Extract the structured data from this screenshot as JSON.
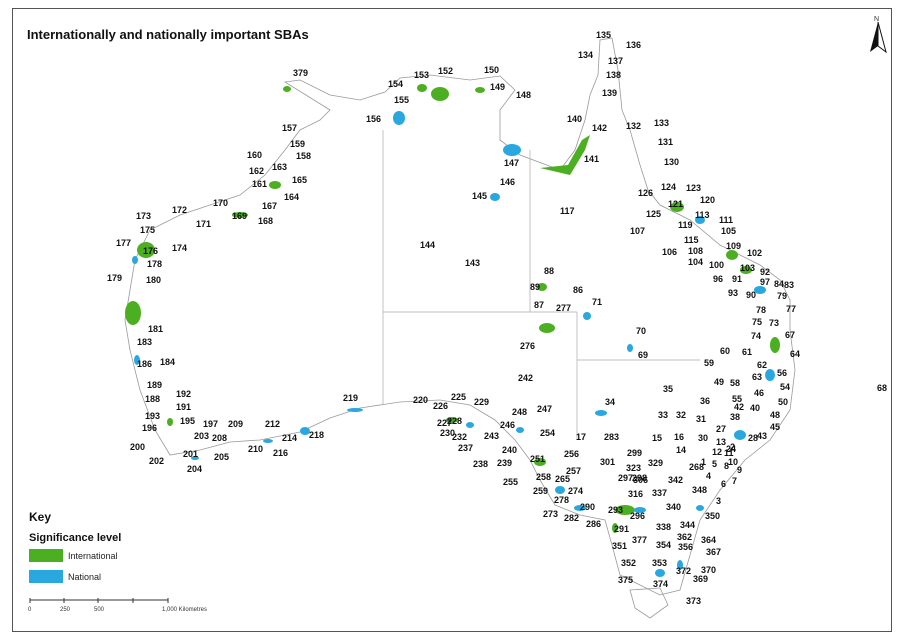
{
  "title": "Internationally and nationally important SBAs",
  "key": {
    "title": "Key",
    "subtitle": "Significance level",
    "items": [
      {
        "label": "International",
        "color": "#4caf22"
      },
      {
        "label": "National",
        "color": "#29a8e0"
      }
    ]
  },
  "north_arrow": {
    "label": "N",
    "icon": "north-arrow-icon"
  },
  "scale_bar": {
    "ticks": [
      "0",
      "250",
      "500",
      "",
      "1,000 Kilometres"
    ]
  },
  "site_labels": [
    "135",
    "136",
    "134",
    "137",
    "138",
    "139",
    "150",
    "149",
    "148",
    "152",
    "153",
    "154",
    "155",
    "156",
    "379",
    "157",
    "159",
    "158",
    "160",
    "163",
    "162",
    "165",
    "161",
    "164",
    "167",
    "168",
    "170",
    "169",
    "171",
    "172",
    "173",
    "175",
    "176",
    "177",
    "174",
    "178",
    "179",
    "180",
    "181",
    "183",
    "184",
    "186",
    "188",
    "189",
    "192",
    "191",
    "193",
    "195",
    "196",
    "197",
    "200",
    "202",
    "203",
    "201",
    "204",
    "205",
    "208",
    "209",
    "210",
    "212",
    "214",
    "216",
    "218",
    "219",
    "220",
    "225",
    "226",
    "227",
    "228",
    "229",
    "230",
    "232",
    "243",
    "237",
    "238",
    "240",
    "239",
    "242",
    "246",
    "247",
    "248",
    "254",
    "251",
    "255",
    "256",
    "257",
    "258",
    "259",
    "265",
    "274",
    "17",
    "283",
    "278",
    "273",
    "282",
    "286",
    "290",
    "291",
    "293",
    "296",
    "297",
    "298",
    "299",
    "301",
    "306",
    "316",
    "323",
    "329",
    "337",
    "338",
    "340",
    "342",
    "344",
    "348",
    "350",
    "351",
    "352",
    "353",
    "354",
    "356",
    "362",
    "364",
    "367",
    "369",
    "370",
    "372",
    "373",
    "374",
    "375",
    "377",
    "140",
    "142",
    "141",
    "147",
    "146",
    "145",
    "117",
    "144",
    "143",
    "88",
    "89",
    "86",
    "87",
    "277",
    "71",
    "276",
    "70",
    "69",
    "34",
    "35",
    "33",
    "32",
    "36",
    "31",
    "30",
    "16",
    "15",
    "14",
    "13",
    "12",
    "11",
    "10",
    "9",
    "8",
    "7",
    "6",
    "5",
    "4",
    "3",
    "2",
    "1",
    "268",
    "24",
    "27",
    "28",
    "38",
    "40",
    "42",
    "43",
    "45",
    "46",
    "48",
    "49",
    "50",
    "54",
    "55",
    "56",
    "58",
    "59",
    "60",
    "61",
    "62",
    "63",
    "64",
    "67",
    "68",
    "73",
    "74",
    "75",
    "77",
    "78",
    "79",
    "83",
    "84",
    "90",
    "91",
    "92",
    "93",
    "96",
    "97",
    "100",
    "102",
    "103",
    "104",
    "105",
    "106",
    "107",
    "108",
    "109",
    "111",
    "113",
    "115",
    "119",
    "120",
    "121",
    "123",
    "124",
    "125",
    "126",
    "130",
    "131",
    "132",
    "133"
  ]
}
